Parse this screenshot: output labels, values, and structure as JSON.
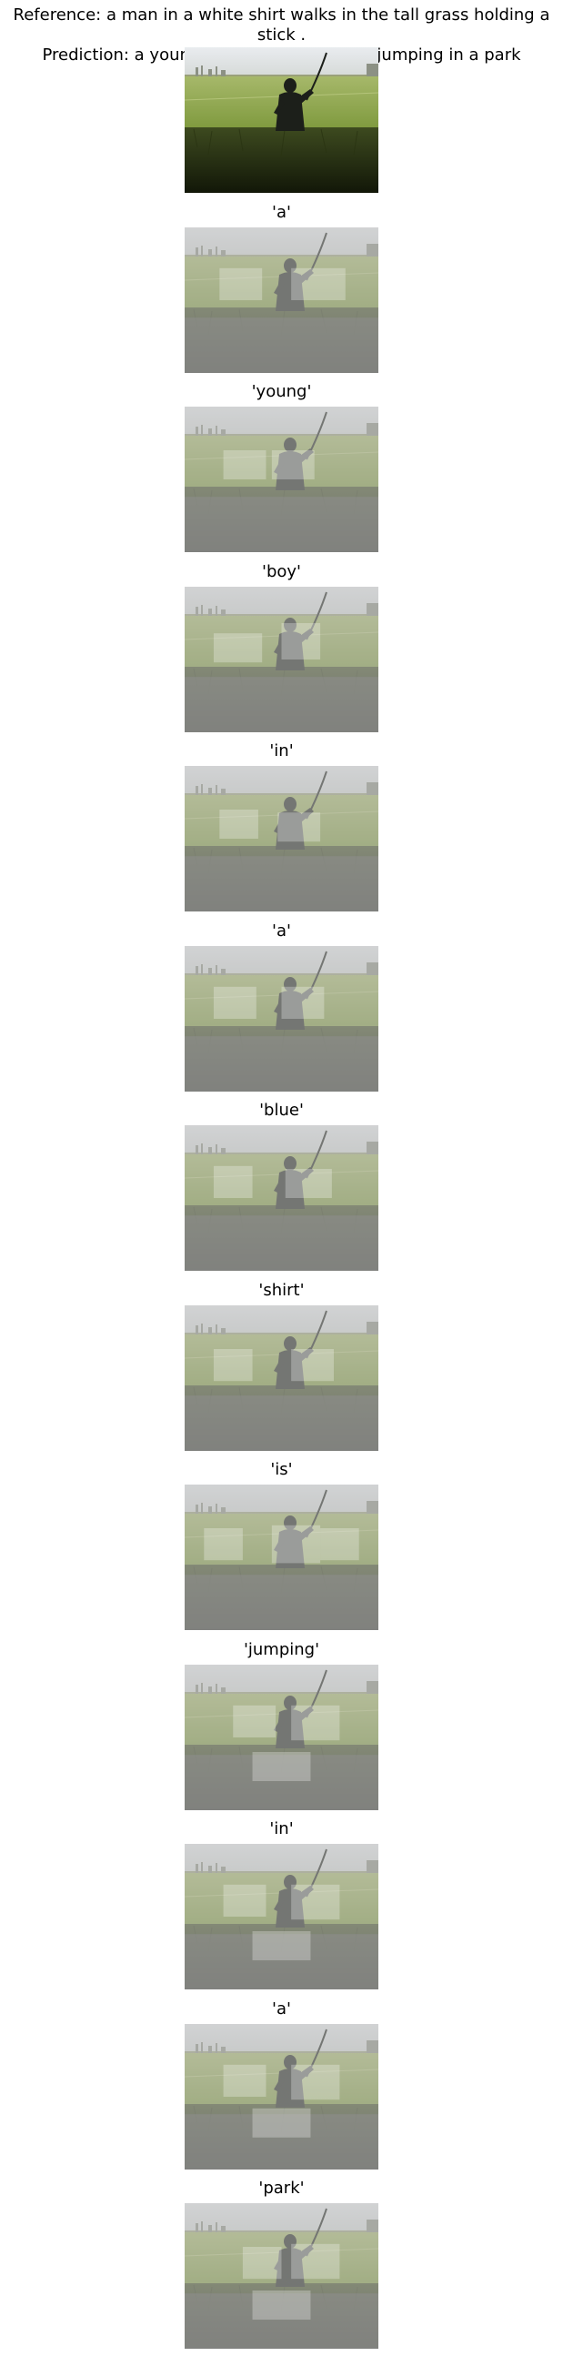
{
  "header": {
    "reference": "Reference: a man in a white shirt walks in the tall grass holding a stick .",
    "prediction": "Prediction: a young boy in a blue shirt is jumping in a park"
  },
  "panels": [
    {
      "label": ""
    },
    {
      "label": "'a'"
    },
    {
      "label": "'young'"
    },
    {
      "label": "'boy'"
    },
    {
      "label": "'in'"
    },
    {
      "label": "'a'"
    },
    {
      "label": "'blue'"
    },
    {
      "label": "'shirt'"
    },
    {
      "label": "'is'"
    },
    {
      "label": "'jumping'"
    },
    {
      "label": "'in'"
    },
    {
      "label": "'a'"
    },
    {
      "label": "'park'"
    }
  ]
}
